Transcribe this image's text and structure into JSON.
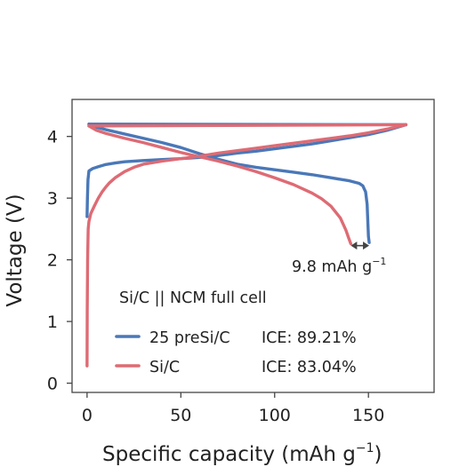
{
  "chart_data": {
    "type": "line",
    "title": "",
    "xlabel": "Specific capacity (mAh g",
    "xlabel_sup": "−1",
    "xlabel_tail": ")",
    "ylabel": "Voltage (V)",
    "xlim": [
      -8,
      185
    ],
    "ylim": [
      -0.15,
      4.6
    ],
    "x_ticks": [
      "0",
      "50",
      "100",
      "150"
    ],
    "y_ticks": [
      "0",
      "1",
      "2",
      "3",
      "4"
    ],
    "grid": false,
    "legend_title": "Si/C || NCM full cell",
    "legend_placement": "bottom-left",
    "annotation": {
      "text": "9.8 mAh g",
      "sup": "−1",
      "arrow_from": [
        140.6,
        2.23
      ],
      "arrow_to": [
        150.4,
        2.23
      ]
    },
    "series": [
      {
        "name": "25 preSi/C",
        "ice": "ICE: 89.21%",
        "color": "#4a78b8",
        "segments": [
          [
            [
              0,
              2.7
            ],
            [
              0.2,
              3.0
            ],
            [
              0.5,
              3.3
            ],
            [
              1,
              3.44
            ],
            [
              3,
              3.48
            ],
            [
              6,
              3.51
            ],
            [
              10,
              3.545
            ],
            [
              15,
              3.57
            ],
            [
              20,
              3.59
            ],
            [
              30,
              3.61
            ],
            [
              40,
              3.625
            ],
            [
              50,
              3.64
            ],
            [
              60,
              3.66
            ],
            [
              70,
              3.69
            ],
            [
              80,
              3.73
            ],
            [
              90,
              3.76
            ],
            [
              100,
              3.8
            ],
            [
              110,
              3.84
            ],
            [
              120,
              3.88
            ],
            [
              130,
              3.93
            ],
            [
              140,
              3.98
            ],
            [
              150,
              4.03
            ],
            [
              160,
              4.1
            ],
            [
              170,
              4.19
            ]
          ],
          [
            [
              170,
              4.19
            ],
            [
              1,
              4.2
            ]
          ],
          [
            [
              1,
              4.2
            ],
            [
              5,
              4.15
            ],
            [
              10,
              4.11
            ],
            [
              20,
              4.04
            ],
            [
              30,
              3.97
            ],
            [
              40,
              3.9
            ],
            [
              50,
              3.82
            ],
            [
              60,
              3.72
            ],
            [
              70,
              3.63
            ],
            [
              80,
              3.55
            ],
            [
              90,
              3.5
            ],
            [
              100,
              3.46
            ],
            [
              110,
              3.42
            ],
            [
              120,
              3.38
            ],
            [
              130,
              3.33
            ],
            [
              140,
              3.28
            ],
            [
              145,
              3.24
            ],
            [
              147,
              3.2
            ],
            [
              148.5,
              3.1
            ],
            [
              149.3,
              2.9
            ],
            [
              149.7,
              2.6
            ],
            [
              150,
              2.38
            ],
            [
              150.4,
              2.28
            ]
          ]
        ]
      },
      {
        "name": "Si/C",
        "ice": "ICE: 83.04%",
        "color": "#de6b74",
        "segments": [
          [
            [
              0,
              0.28
            ],
            [
              0.1,
              1.2
            ],
            [
              0.3,
              2.0
            ],
            [
              0.6,
              2.5
            ],
            [
              1,
              2.62
            ],
            [
              2,
              2.75
            ],
            [
              4,
              2.88
            ],
            [
              6,
              3.0
            ],
            [
              8,
              3.1
            ],
            [
              10,
              3.18
            ],
            [
              12,
              3.25
            ],
            [
              15,
              3.33
            ],
            [
              20,
              3.43
            ],
            [
              25,
              3.5
            ],
            [
              30,
              3.55
            ],
            [
              40,
              3.6
            ],
            [
              50,
              3.64
            ],
            [
              60,
              3.68
            ],
            [
              70,
              3.73
            ],
            [
              80,
              3.77
            ],
            [
              90,
              3.81
            ],
            [
              100,
              3.85
            ],
            [
              110,
              3.89
            ],
            [
              120,
              3.93
            ],
            [
              130,
              3.97
            ],
            [
              140,
              4.01
            ],
            [
              150,
              4.06
            ],
            [
              160,
              4.12
            ],
            [
              170,
              4.19
            ]
          ],
          [
            [
              170,
              4.19
            ],
            [
              1,
              4.17
            ]
          ],
          [
            [
              1,
              4.17
            ],
            [
              5,
              4.1
            ],
            [
              10,
              4.05
            ],
            [
              20,
              3.97
            ],
            [
              30,
              3.9
            ],
            [
              40,
              3.82
            ],
            [
              50,
              3.74
            ],
            [
              60,
              3.67
            ],
            [
              70,
              3.6
            ],
            [
              80,
              3.52
            ],
            [
              90,
              3.43
            ],
            [
              100,
              3.33
            ],
            [
              110,
              3.22
            ],
            [
              120,
              3.08
            ],
            [
              125,
              2.99
            ],
            [
              130,
              2.87
            ],
            [
              135,
              2.68
            ],
            [
              138,
              2.48
            ],
            [
              139.5,
              2.35
            ],
            [
              140.6,
              2.26
            ]
          ]
        ]
      }
    ]
  }
}
